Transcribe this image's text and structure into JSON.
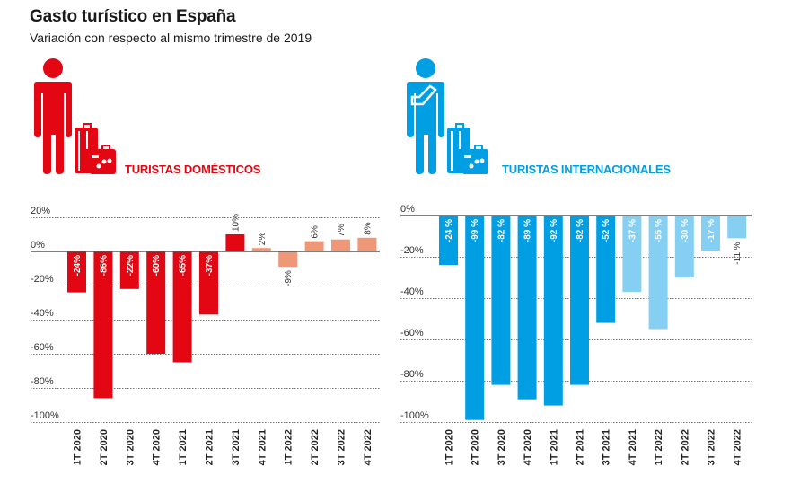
{
  "header": {
    "title": "Gasto turístico en España",
    "subtitle": "Variación con respecto al mismo trimestre de 2019"
  },
  "chart_data": [
    {
      "type": "bar",
      "title": "TURISTAS DOMÉSTICOS",
      "icon": "person-with-luggage-icon",
      "categories": [
        "1T 2020",
        "2T 2020",
        "3T 2020",
        "4T 2020",
        "1T 2021",
        "2T 2021",
        "3T 2021",
        "4T 2021",
        "1T 2022",
        "2T 2022",
        "3T 2022",
        "4T 2022"
      ],
      "values": [
        -24,
        -86,
        -22,
        -60,
        -65,
        -37,
        10,
        2,
        -9,
        6,
        7,
        8
      ],
      "labels": [
        "-24%",
        "-86%",
        "-22%",
        "-60%",
        "-65%",
        "-37%",
        "10%",
        "2%",
        "-9%",
        "6%",
        "7%",
        "8%"
      ],
      "yticks": [
        20,
        0,
        -20,
        -40,
        -60,
        -80,
        -100
      ],
      "ytick_labels": [
        "20%",
        "0%",
        "-20%",
        "-40%",
        "-60%",
        "-80%",
        "-100%"
      ],
      "ylim": [
        -100,
        20
      ],
      "grid": true,
      "colors": {
        "dark": "#e30613",
        "light": "#ef9878"
      },
      "light_from_index": 7,
      "xlabel": "",
      "ylabel": ""
    },
    {
      "type": "bar",
      "title": "TURISTAS INTERNACIONALES",
      "icon": "person-with-map-luggage-icon",
      "categories": [
        "1T 2020",
        "2T 2020",
        "3T 2020",
        "4T 2020",
        "1T 2021",
        "2T 2021",
        "3T 2021",
        "4T 2021",
        "1T 2022",
        "2T 2022",
        "3T 2022",
        "4T 2022"
      ],
      "values": [
        -24,
        -99,
        -82,
        -89,
        -92,
        -82,
        -52,
        -37,
        -55,
        -30,
        -17,
        -11
      ],
      "labels": [
        "-24 %",
        "-99 %",
        "-82 %",
        "-89 %",
        "-92 %",
        "-82 %",
        "-52 %",
        "-37 %",
        "-55 %",
        "-30 %",
        "-17 %",
        "-11 %"
      ],
      "yticks": [
        0,
        -20,
        -40,
        -60,
        -80,
        -100
      ],
      "ytick_labels": [
        "0%",
        "-20%",
        "-40%",
        "-60%",
        "-80%",
        "-100%"
      ],
      "ylim": [
        -100,
        0
      ],
      "grid": true,
      "colors": {
        "dark": "#009fe3",
        "light": "#85cff2"
      },
      "light_from_index": 7,
      "xlabel": "",
      "ylabel": ""
    }
  ]
}
